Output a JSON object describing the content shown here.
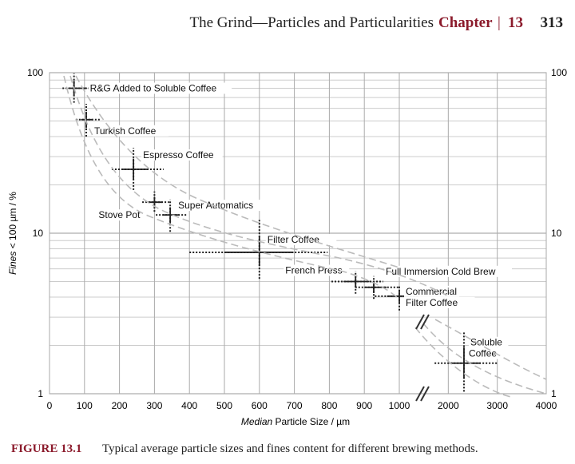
{
  "header": {
    "title": "The Grind—Particles and Particularities",
    "chapter": "Chapter",
    "separator": "|",
    "chapter_number": "13",
    "page_number": "313"
  },
  "chart_data": {
    "type": "scatter",
    "x_label": {
      "italic": "Median",
      "rest": "Particle Size / µm"
    },
    "y_label": {
      "italic": "Fines",
      "rest": "< 100 µm / %"
    },
    "xlim": [
      0,
      4000
    ],
    "xticks": [
      0,
      100,
      200,
      300,
      400,
      500,
      600,
      700,
      800,
      900,
      1000,
      2000,
      3000,
      4000
    ],
    "ylim": [
      1,
      100
    ],
    "yticks": [
      1,
      10,
      100
    ],
    "log_scale_y": true,
    "grid": true,
    "right_axis_labels": true,
    "color": "#222222",
    "points": [
      {
        "label": [
          "R&G Added to Soluble Coffee"
        ],
        "x": 70,
        "y": 80,
        "x_range": [
          37,
          144
        ],
        "y_range": [
          65,
          99
        ]
      },
      {
        "label": [
          "Turkish Coffee"
        ],
        "x": 105,
        "y": 51,
        "x_range": [
          75,
          144
        ],
        "y_range": [
          40,
          64
        ]
      },
      {
        "label": [
          "Espresso Coffee"
        ],
        "x": 240,
        "y": 25,
        "x_range": [
          178,
          326
        ],
        "y_range": [
          18.6,
          34
        ]
      },
      {
        "label": [
          "Stove Pot"
        ],
        "x": 300,
        "y": 15.6,
        "x_range": [
          265,
          342
        ],
        "y_range": [
          13.6,
          18.2
        ]
      },
      {
        "label": [
          "Super Automatics"
        ],
        "x": 345,
        "y": 13,
        "x_range": [
          304,
          395
        ],
        "y_range": [
          10.2,
          16.2
        ]
      },
      {
        "label": [
          "Filter Coffee"
        ],
        "x": 600,
        "y": 7.6,
        "x_range": [
          400,
          795
        ],
        "y_range": [
          5.2,
          12.1
        ]
      },
      {
        "label": [
          "French Press"
        ],
        "x": 875,
        "y": 5,
        "x_range": [
          806,
          954
        ],
        "y_range": [
          4.2,
          5.8
        ]
      },
      {
        "label": [
          "Full Immersion Cold Brew"
        ],
        "x": 927,
        "y": 4.6,
        "x_range": [
          874,
          1000
        ],
        "y_range": [
          3.9,
          5.4
        ]
      },
      {
        "label": [
          "Commercial",
          "Filter Coffee"
        ],
        "x": 1000,
        "y": 4.05,
        "x_range": [
          930,
          1400
        ],
        "y_range": [
          3.3,
          4.7
        ]
      },
      {
        "label": [
          "Soluble",
          "Coffee"
        ],
        "x": 2320,
        "y": 1.55,
        "x_range": [
          1720,
          3000
        ],
        "y_range": [
          1.03,
          2.45
        ]
      }
    ]
  },
  "caption": {
    "label": "FIGURE 13.1",
    "text": "Typical average particle sizes and fines content for different brewing methods."
  }
}
